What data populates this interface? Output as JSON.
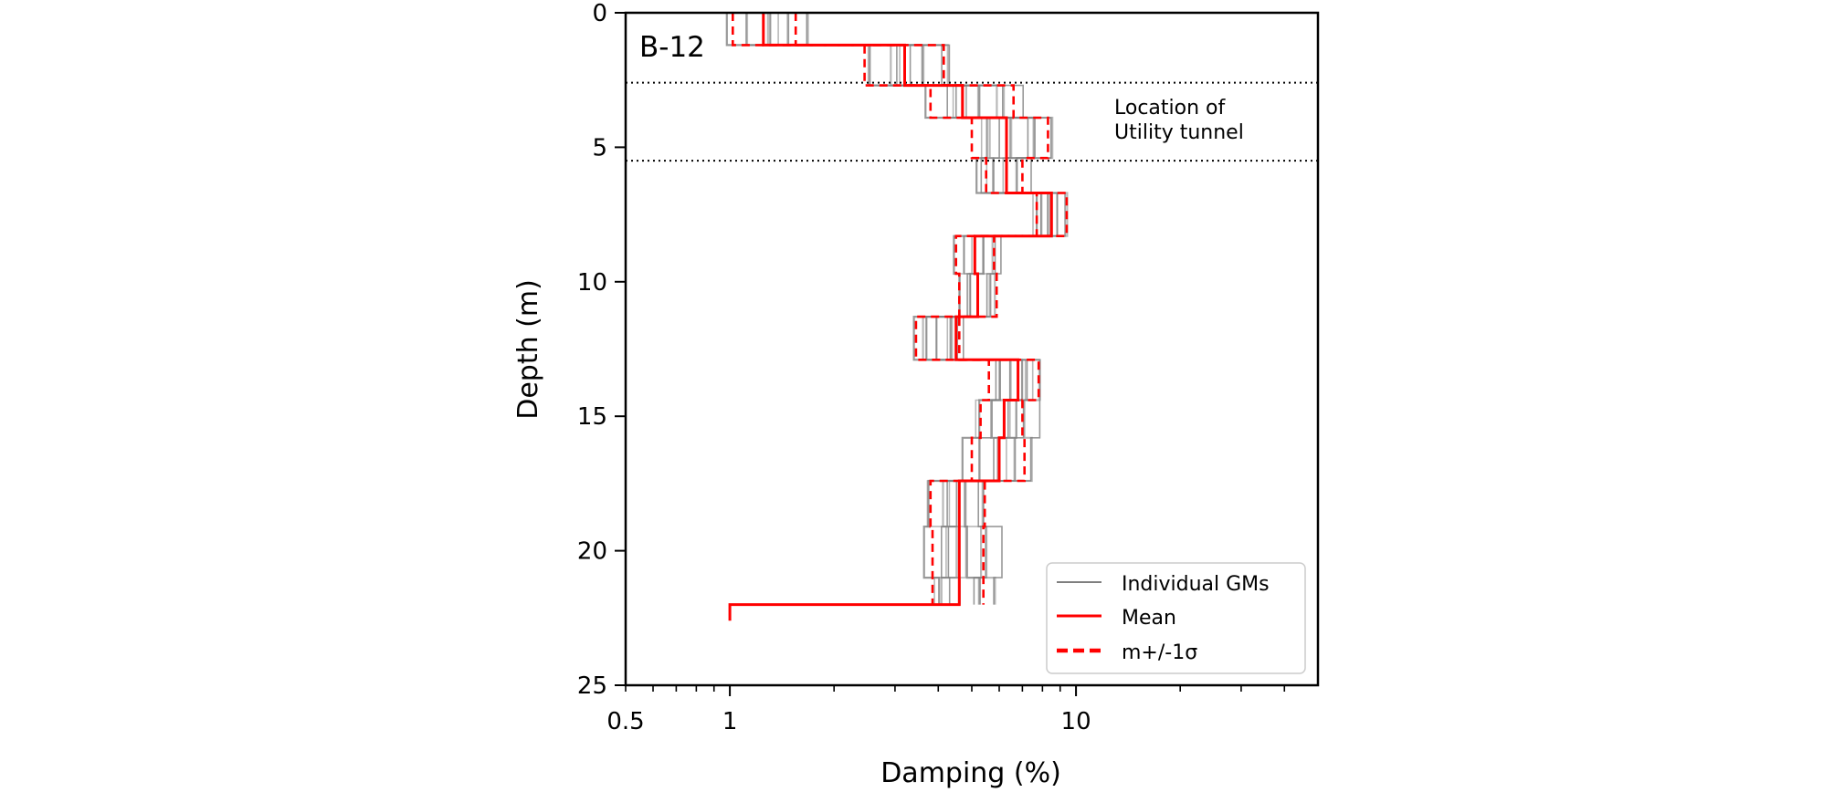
{
  "chart_data": {
    "type": "line",
    "panel_label": "B-12",
    "xlabel": "Damping (%)",
    "ylabel": "Depth (m)",
    "xscale": "log",
    "xlim": [
      0.5,
      50
    ],
    "ylim": [
      25,
      0
    ],
    "x_tick_labels": [
      {
        "value": 0.5,
        "label": "0.5"
      },
      {
        "value": 1,
        "label": "1"
      },
      {
        "value": 10,
        "label": "10"
      }
    ],
    "y_tick_labels": [
      {
        "value": 0,
        "label": "0"
      },
      {
        "value": 5,
        "label": "5"
      },
      {
        "value": 10,
        "label": "10"
      },
      {
        "value": 15,
        "label": "15"
      },
      {
        "value": 20,
        "label": "20"
      },
      {
        "value": 25,
        "label": "25"
      }
    ],
    "annotation": {
      "lines": [
        "Location of",
        "Utility tunnel"
      ]
    },
    "reference_lines": {
      "style": "dotted",
      "depths": [
        2.6,
        5.5
      ]
    },
    "layer_bottoms": [
      1.2,
      2.7,
      3.9,
      5.4,
      6.7,
      8.3,
      9.7,
      11.3,
      12.9,
      14.4,
      15.8,
      17.4,
      19.1,
      21.0,
      22.0
    ],
    "bottom_depth": 22.6,
    "series": [
      {
        "name": "Mean",
        "style": "solid",
        "color": "#ff0000",
        "values": [
          1.25,
          3.2,
          4.7,
          6.3,
          6.3,
          8.5,
          5.1,
          5.2,
          4.5,
          6.8,
          6.2,
          6.0,
          4.6,
          4.6,
          4.6,
          1.0
        ]
      },
      {
        "name": "m-1σ",
        "style": "dashed",
        "color": "#ff0000",
        "values": [
          1.02,
          2.45,
          3.8,
          5.0,
          5.5,
          7.7,
          4.5,
          4.6,
          3.45,
          5.6,
          5.3,
          5.0,
          3.8,
          3.85,
          3.85
        ]
      },
      {
        "name": "m+1σ",
        "style": "dashed",
        "color": "#ff0000",
        "values": [
          1.55,
          4.15,
          6.6,
          8.3,
          7.0,
          9.4,
          5.8,
          5.9,
          4.6,
          7.8,
          7.0,
          7.1,
          5.45,
          5.4,
          5.4
        ]
      }
    ],
    "gm_spread": [
      [
        [
          0.98,
          1.8
        ],
        [
          2.25,
          5.0
        ],
        [
          3.5,
          7.6
        ],
        [
          4.7,
          9.7
        ],
        [
          4.95,
          7.5
        ],
        [
          7.3,
          9.7
        ],
        [
          4.4,
          6.2
        ],
        [
          4.4,
          6.1
        ],
        [
          3.3,
          4.95
        ],
        [
          5.5,
          8.5
        ],
        [
          4.95,
          8.0
        ],
        [
          4.7,
          7.9
        ],
        [
          3.45,
          6.0
        ],
        [
          3.5,
          6.5
        ],
        [
          3.5,
          6.5
        ]
      ]
    ],
    "legend": {
      "position": "lower-right",
      "entries": [
        {
          "label": "Individual GMs",
          "color": "#7f7f7f",
          "style": "solid"
        },
        {
          "label": "Mean",
          "color": "#ff0000",
          "style": "solid"
        },
        {
          "label": "m+/-1σ",
          "color": "#ff0000",
          "style": "dashed"
        }
      ]
    }
  }
}
